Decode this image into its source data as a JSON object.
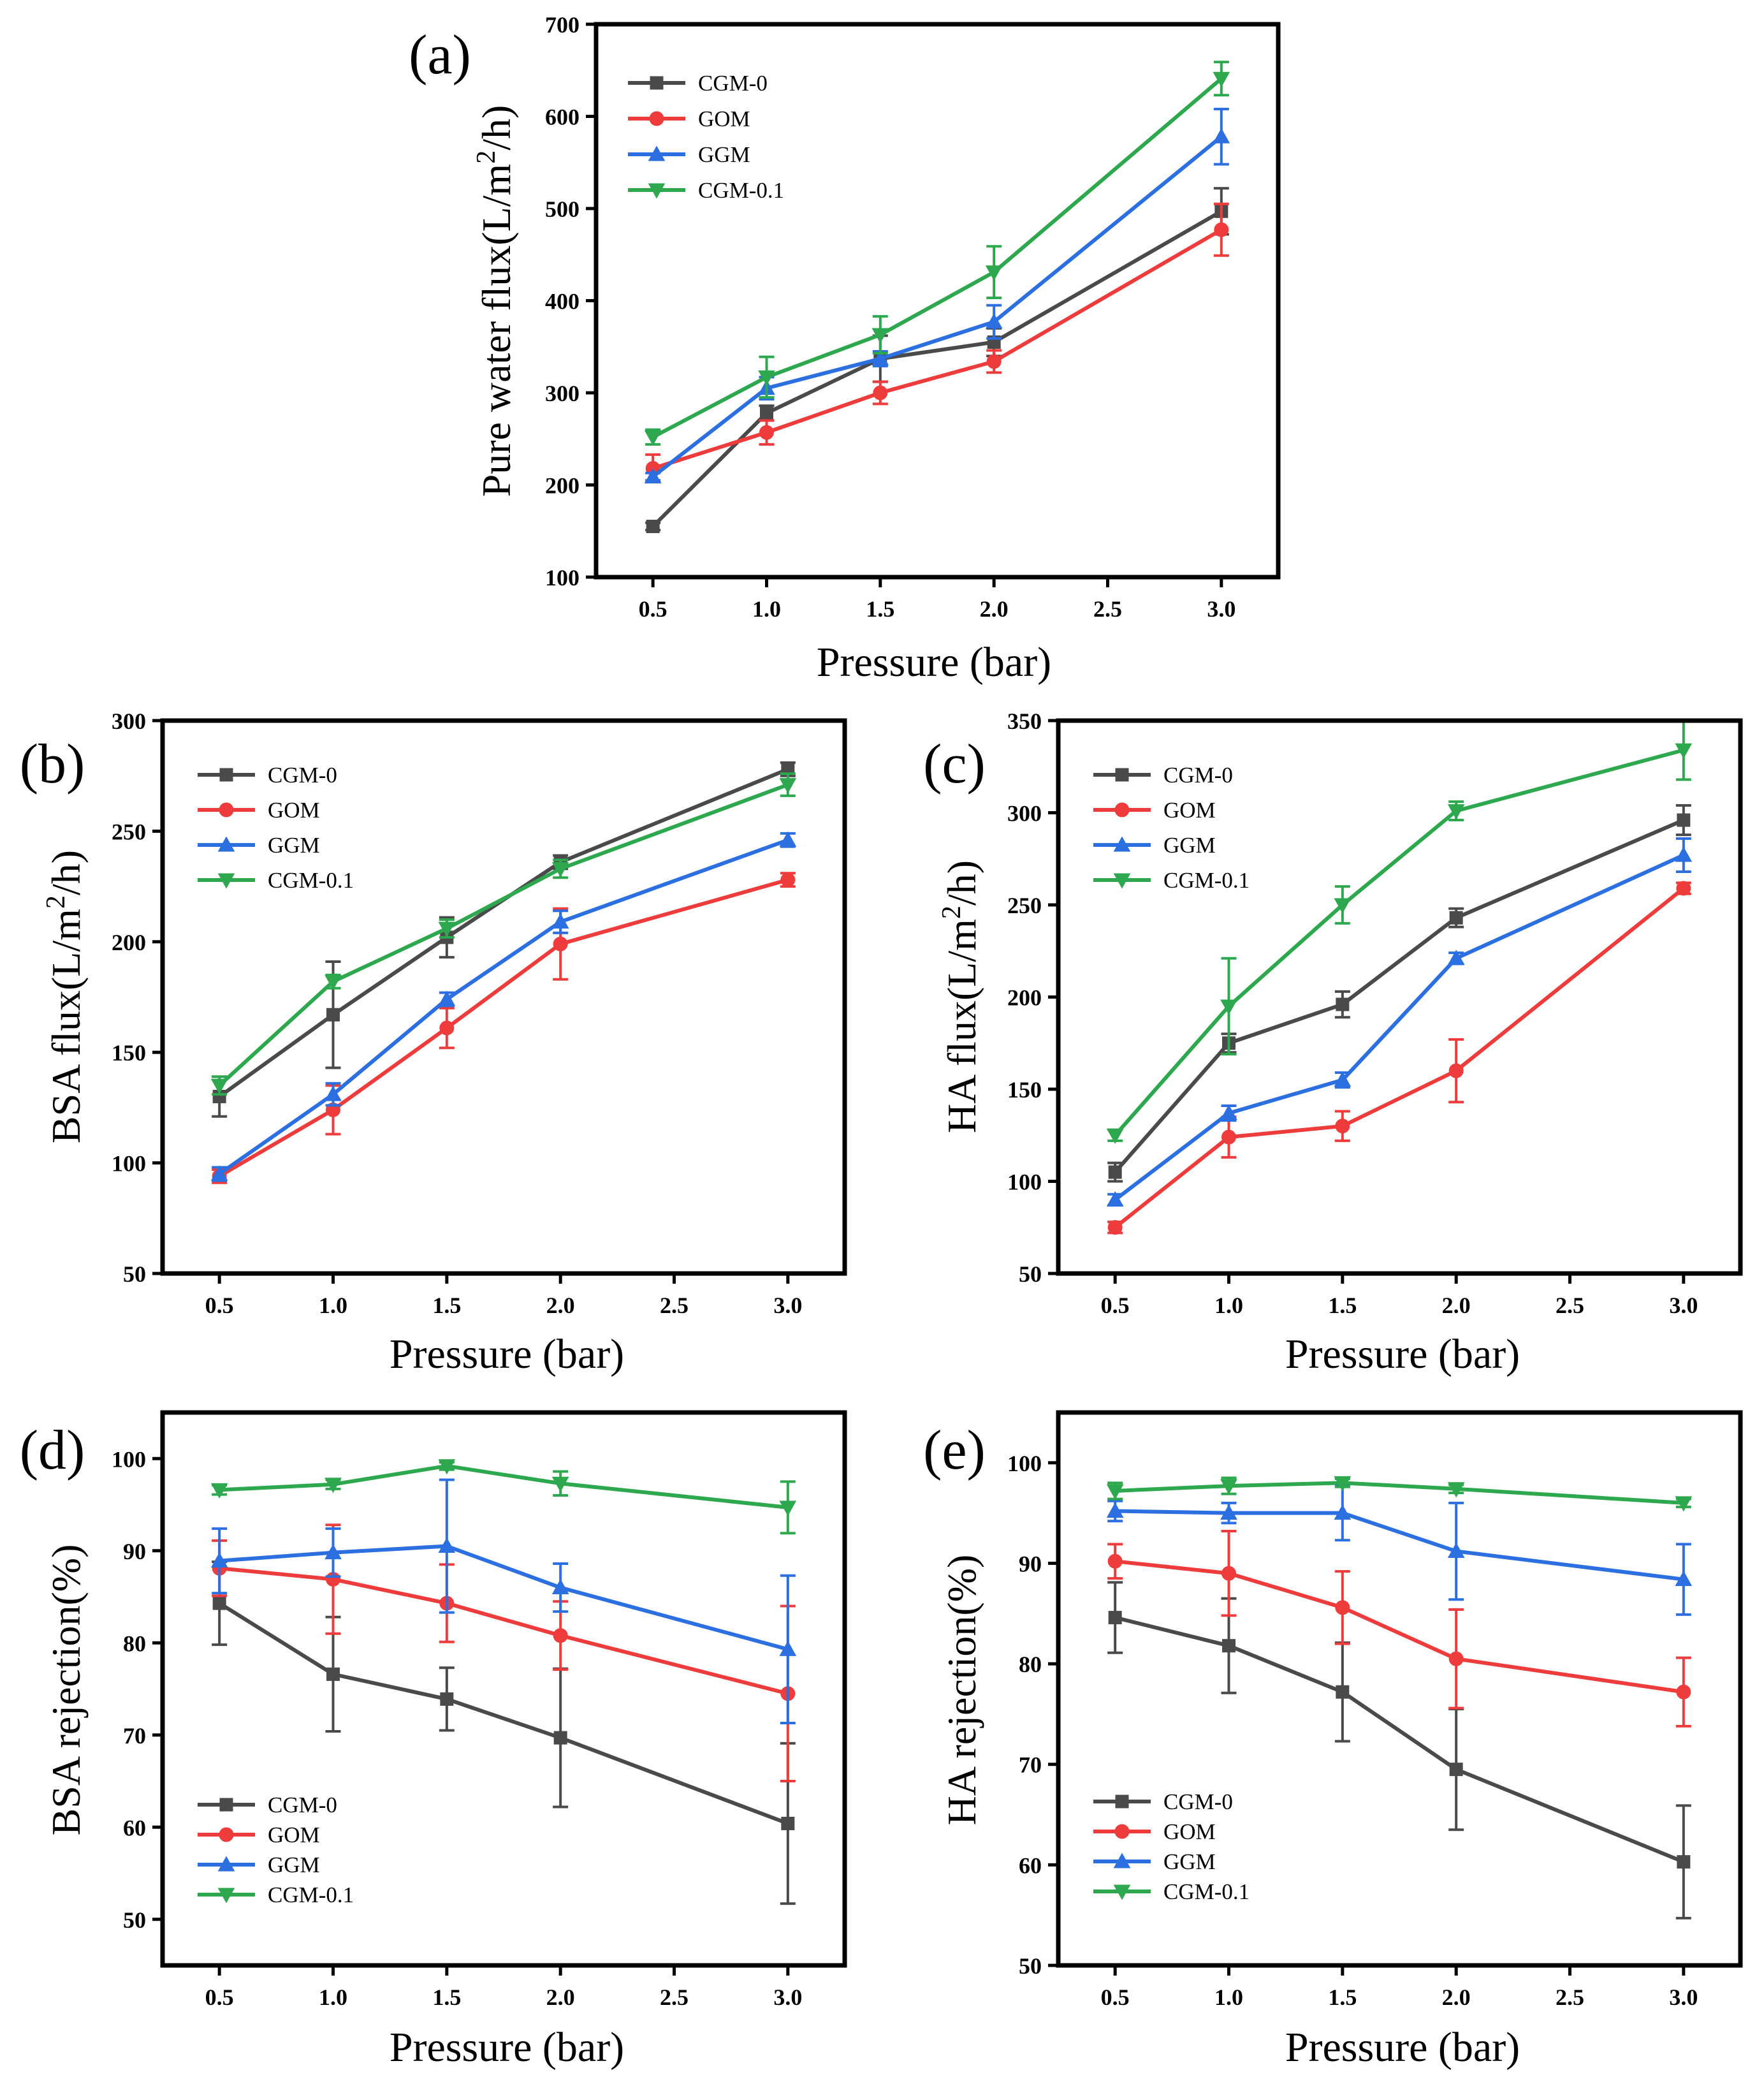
{
  "figure": {
    "colors": {
      "CGM-0": "#4a4a4a",
      "GOM": "#ee3b3b",
      "GGM": "#2b6fe0",
      "CGM-0.1": "#2ea84e"
    },
    "markers": {
      "CGM-0": "square",
      "GOM": "circle",
      "GGM": "triangle-up",
      "CGM-0.1": "triangle-down"
    }
  },
  "chart_data": [
    {
      "id": "a",
      "panel_label": "(a)",
      "type": "line",
      "xlabel": "Pressure (bar)",
      "ylabel": "Pure water flux(L/m²/h)",
      "ylabel_base": "Pure water flux(L/m",
      "ylabel_sup": "2",
      "ylabel_tail": "/h)",
      "xlim": [
        0.25,
        3.25
      ],
      "ylim": [
        100,
        700
      ],
      "xticks": [
        "0.5",
        "1.0",
        "1.5",
        "2.0",
        "2.5",
        "3.0"
      ],
      "yticks": [
        "100",
        "200",
        "300",
        "400",
        "500",
        "600",
        "700"
      ],
      "legend_position": "top-left",
      "x": [
        0.5,
        1.0,
        1.5,
        2.0,
        3.0
      ],
      "series": [
        {
          "name": "CGM-0",
          "values": [
            155,
            278,
            337,
            355,
            497
          ],
          "errors": [
            4,
            8,
            25,
            15,
            25
          ]
        },
        {
          "name": "GOM",
          "values": [
            218,
            257,
            300,
            334,
            477
          ],
          "errors": [
            15,
            13,
            12,
            12,
            28
          ]
        },
        {
          "name": "GGM",
          "values": [
            209,
            305,
            337,
            377,
            578
          ],
          "errors": [
            4,
            12,
            8,
            18,
            30
          ]
        },
        {
          "name": "CGM-0.1",
          "values": [
            252,
            317,
            363,
            431,
            641
          ],
          "errors": [
            8,
            22,
            20,
            28,
            18
          ]
        }
      ]
    },
    {
      "id": "b",
      "panel_label": "(b)",
      "type": "line",
      "xlabel": "Pressure (bar)",
      "ylabel": "BSA flux(L/m²/h)",
      "ylabel_base": "BSA flux(L/m",
      "ylabel_sup": "2",
      "ylabel_tail": "/h)",
      "xlim": [
        0.25,
        3.25
      ],
      "ylim": [
        50,
        300
      ],
      "xticks": [
        "0.5",
        "1.0",
        "1.5",
        "2.0",
        "2.5",
        "3.0"
      ],
      "yticks": [
        "50",
        "100",
        "150",
        "200",
        "250",
        "300"
      ],
      "legend_position": "top-left",
      "x": [
        0.5,
        1.0,
        1.5,
        2.0,
        3.0
      ],
      "series": [
        {
          "name": "CGM-0",
          "values": [
            130,
            167,
            202,
            236,
            278
          ],
          "errors": [
            9,
            24,
            9,
            3,
            3
          ]
        },
        {
          "name": "GOM",
          "values": [
            94,
            124,
            161,
            199,
            228
          ],
          "errors": [
            3,
            11,
            9,
            16,
            3
          ]
        },
        {
          "name": "GGM",
          "values": [
            95,
            131,
            174,
            209,
            246
          ],
          "errors": [
            3,
            5,
            3,
            5,
            3
          ]
        },
        {
          "name": "CGM-0.1",
          "values": [
            135,
            182,
            206,
            233,
            271
          ],
          "errors": [
            4,
            3,
            4,
            4,
            5
          ]
        }
      ]
    },
    {
      "id": "c",
      "panel_label": "(c)",
      "type": "line",
      "xlabel": "Pressure (bar)",
      "ylabel": "HA flux(L/m²/h)",
      "ylabel_base": "HA flux(L/m",
      "ylabel_sup": "2",
      "ylabel_tail": "/h)",
      "xlim": [
        0.25,
        3.25
      ],
      "ylim": [
        50,
        350
      ],
      "xticks": [
        "0.5",
        "1.0",
        "1.5",
        "2.0",
        "2.5",
        "3.0"
      ],
      "yticks": [
        "50",
        "100",
        "150",
        "200",
        "250",
        "300",
        "350"
      ],
      "legend_position": "top-left",
      "x": [
        0.5,
        1.0,
        1.5,
        2.0,
        3.0
      ],
      "series": [
        {
          "name": "CGM-0",
          "values": [
            105,
            175,
            196,
            243,
            296
          ],
          "errors": [
            5,
            5,
            7,
            5,
            8
          ]
        },
        {
          "name": "GOM",
          "values": [
            75,
            124,
            130,
            160,
            259
          ],
          "errors": [
            3,
            11,
            8,
            17,
            3
          ]
        },
        {
          "name": "GGM",
          "values": [
            90,
            137,
            155,
            221,
            277
          ],
          "errors": [
            3,
            4,
            4,
            3,
            9
          ]
        },
        {
          "name": "CGM-0.1",
          "values": [
            125,
            195,
            250,
            301,
            334
          ],
          "errors": [
            3,
            26,
            10,
            5,
            16
          ]
        }
      ]
    },
    {
      "id": "d",
      "panel_label": "(d)",
      "type": "line",
      "xlabel": "Pressure (bar)",
      "ylabel": "BSA rejection(%)",
      "xlim": [
        0.25,
        3.25
      ],
      "ylim": [
        45,
        105
      ],
      "xticks": [
        "0.5",
        "1.0",
        "1.5",
        "2.0",
        "2.5",
        "3.0"
      ],
      "yticks": [
        "50",
        "60",
        "70",
        "80",
        "90",
        "100"
      ],
      "legend_position": "bottom-left",
      "x": [
        0.5,
        1.0,
        1.5,
        2.0,
        3.0
      ],
      "series": [
        {
          "name": "CGM-0",
          "values": [
            84.3,
            76.6,
            73.9,
            69.7,
            60.4
          ],
          "errors": [
            4.5,
            6.2,
            3.4,
            7.5,
            8.7
          ]
        },
        {
          "name": "GOM",
          "values": [
            88.1,
            86.9,
            84.3,
            80.8,
            74.5
          ],
          "errors": [
            3.0,
            5.9,
            4.2,
            3.7,
            9.5
          ]
        },
        {
          "name": "GGM",
          "values": [
            88.9,
            89.8,
            90.5,
            86.0,
            79.3
          ],
          "errors": [
            3.5,
            2.6,
            7.2,
            2.6,
            8.0
          ]
        },
        {
          "name": "CGM-0.1",
          "values": [
            96.6,
            97.2,
            99.2,
            97.3,
            94.7
          ],
          "errors": [
            0.5,
            0.5,
            0.4,
            1.3,
            2.8
          ]
        }
      ]
    },
    {
      "id": "e",
      "panel_label": "(e)",
      "type": "line",
      "xlabel": "Pressure (bar)",
      "ylabel": "HA rejection(%)",
      "xlim": [
        0.25,
        3.25
      ],
      "ylim": [
        50,
        105
      ],
      "xticks": [
        "0.5",
        "1.0",
        "1.5",
        "2.0",
        "2.5",
        "3.0"
      ],
      "yticks": [
        "50",
        "60",
        "70",
        "80",
        "90",
        "100"
      ],
      "legend_position": "bottom-left",
      "x": [
        0.5,
        1.0,
        1.5,
        2.0,
        3.0
      ],
      "series": [
        {
          "name": "CGM-0",
          "values": [
            84.6,
            81.8,
            77.2,
            69.5,
            60.3
          ],
          "errors": [
            3.5,
            4.7,
            4.9,
            6.0,
            5.6
          ]
        },
        {
          "name": "GOM",
          "values": [
            90.2,
            89.0,
            85.6,
            80.5,
            77.2
          ],
          "errors": [
            1.7,
            4.2,
            3.6,
            4.9,
            3.4
          ]
        },
        {
          "name": "GGM",
          "values": [
            95.2,
            95.0,
            95.0,
            91.2,
            88.4
          ],
          "errors": [
            1.0,
            1.0,
            2.7,
            4.8,
            3.5
          ]
        },
        {
          "name": "CGM-0.1",
          "values": [
            97.2,
            97.7,
            98.0,
            97.4,
            96.0
          ],
          "errors": [
            0.8,
            0.8,
            0.4,
            0.4,
            0.4
          ]
        }
      ]
    }
  ]
}
